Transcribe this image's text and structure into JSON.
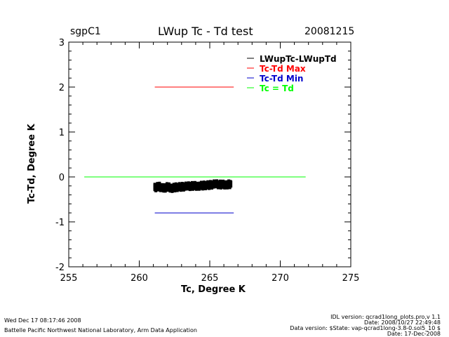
{
  "header": {
    "left": "sgpC1",
    "title": "LWup Tc - Td test",
    "right": "20081215"
  },
  "footer": {
    "timestamp": "Wed Dec 17 08:17:46 2008",
    "institution": "Battelle Pacific Northwest National Laboratory, Arm Data Application",
    "idl_version": "IDL version: qcrad1long_plots.pro,v 1.1",
    "idl_date": "Date: 2008/10/27 22:49:48",
    "data_version": "Data version: $State: vap-qcrad1long-3.8-0.sol5_10 $",
    "data_date": "Date: 17-Dec-2008"
  },
  "chart_data": {
    "type": "scatter",
    "xlabel": "Tc, Degree K",
    "ylabel": "Tc-Td, Degree K",
    "xlim": [
      255,
      275
    ],
    "ylim": [
      -2,
      3
    ],
    "xticks": [
      "255",
      "260",
      "265",
      "270",
      "275"
    ],
    "yticks": [
      "-2",
      "-1",
      "0",
      "1",
      "2",
      "3"
    ],
    "legend_position": "top-right",
    "series": [
      {
        "name": "LWupTc-LWupTd",
        "color": "#000000",
        "type": "scatter",
        "x": [
          261.1,
          261.4,
          261.7,
          262.0,
          262.3,
          262.6,
          263.0,
          263.4,
          263.8,
          264.2,
          264.6,
          265.0,
          265.4,
          265.8,
          266.2,
          266.5
        ],
        "y": [
          -0.24,
          -0.21,
          -0.26,
          -0.22,
          -0.25,
          -0.23,
          -0.22,
          -0.21,
          -0.2,
          -0.2,
          -0.19,
          -0.18,
          -0.16,
          -0.17,
          -0.17,
          -0.16
        ]
      },
      {
        "name": "Tc-Td Max",
        "color": "#ff0000",
        "type": "line",
        "x": [
          261.1,
          266.7
        ],
        "y": [
          2.0,
          2.0
        ]
      },
      {
        "name": "Tc-Td Min",
        "color": "#0000cc",
        "type": "line",
        "x": [
          261.1,
          266.7
        ],
        "y": [
          -0.8,
          -0.8
        ]
      },
      {
        "name": "Tc = Td",
        "color": "#00ff00",
        "type": "line",
        "x": [
          256.1,
          271.8
        ],
        "y": [
          0,
          0
        ]
      }
    ]
  }
}
